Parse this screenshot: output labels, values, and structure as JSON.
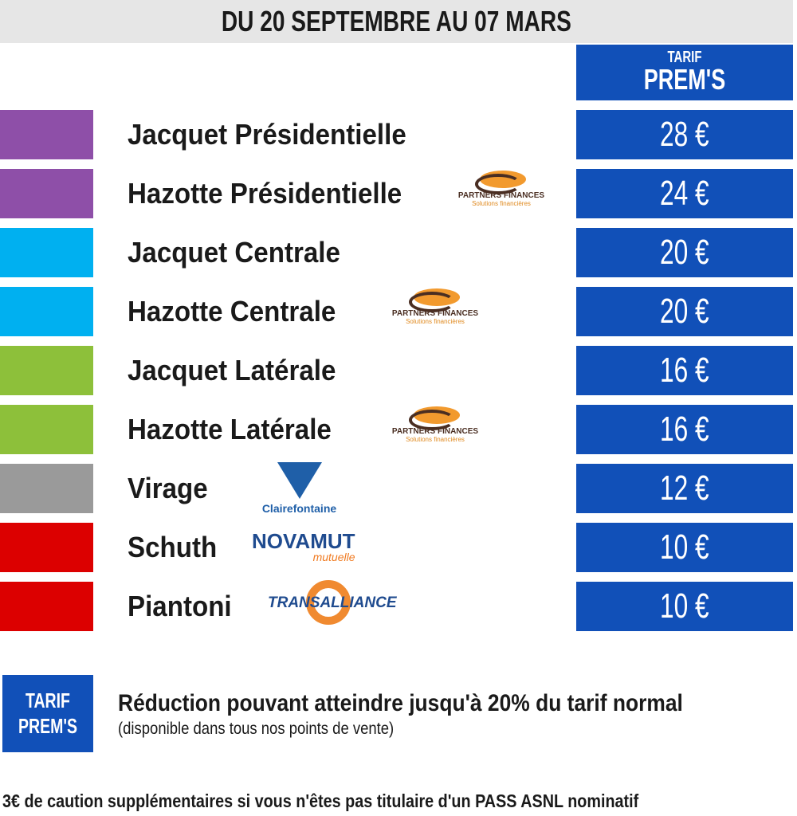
{
  "header": {
    "title": "DU 20 SEPTEMBRE AU 07 MARS"
  },
  "column_header": {
    "line1": "TARIF",
    "line2": "PREM'S"
  },
  "colors": {
    "blue": "#1150b8",
    "purple": "#8e4fa8",
    "cyan": "#00b0f0",
    "green": "#8dc03a",
    "gray": "#9a9a9a",
    "red": "#dc0000"
  },
  "rows": [
    {
      "name": "Jacquet Présidentielle",
      "price": "28 €",
      "color": "#8e4fa8"
    },
    {
      "name": "Hazotte Présidentielle",
      "price": "24 €",
      "color": "#8e4fa8",
      "sponsor": "partners"
    },
    {
      "name": "Jacquet Centrale",
      "price": "20 €",
      "color": "#00b0f0"
    },
    {
      "name": "Hazotte Centrale",
      "price": "20 €",
      "color": "#00b0f0",
      "sponsor": "partners"
    },
    {
      "name": "Jacquet Latérale",
      "price": "16 €",
      "color": "#8dc03a"
    },
    {
      "name": "Hazotte Latérale",
      "price": "16 €",
      "color": "#8dc03a",
      "sponsor": "partners"
    },
    {
      "name": "Virage",
      "price": "12 €",
      "color": "#9a9a9a",
      "sponsor": "clairefontaine"
    },
    {
      "name": "Schuth",
      "price": "10 €",
      "color": "#dc0000",
      "sponsor": "novamut"
    },
    {
      "name": "Piantoni",
      "price": "10 €",
      "color": "#dc0000",
      "sponsor": "transalliance"
    }
  ],
  "sponsors": {
    "partners": {
      "name": "PARTNERS FINANCES",
      "tagline": "Solutions financières"
    },
    "clairefontaine": {
      "name": "Clairefontaine"
    },
    "novamut": {
      "name": "NOVAMUT",
      "tagline": "mutuelle"
    },
    "transalliance": {
      "name": "TRANSALLIANCE"
    }
  },
  "legend": {
    "badge_line1": "TARIF",
    "badge_line2": "PREM'S",
    "text": "Réduction pouvant atteindre jusqu'à 20% du tarif normal",
    "subtext": "(disponible dans tous nos points de vente)"
  },
  "footer": {
    "text": "3€ de caution supplémentaires si vous n'êtes pas titulaire d'un PASS ASNL nominatif"
  }
}
